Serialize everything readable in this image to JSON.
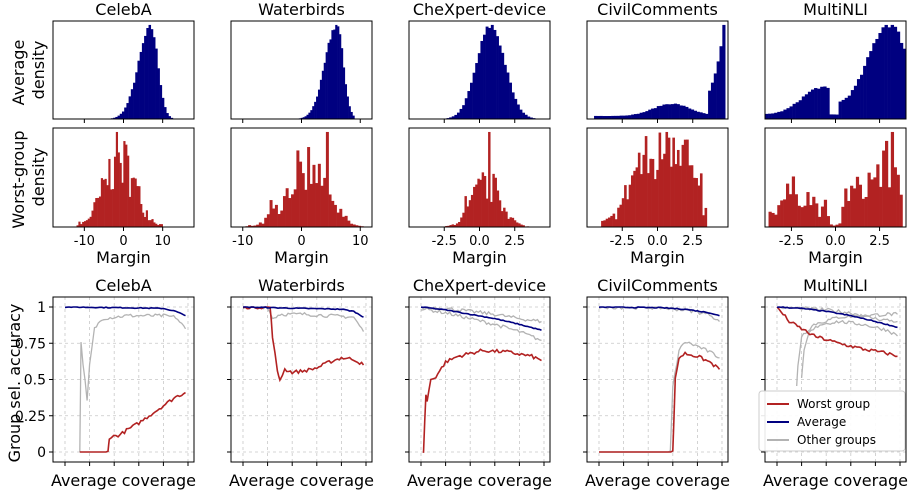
{
  "colors": {
    "average_hist": "#000080",
    "worst_hist": "#b22222",
    "worst_line": "#b22222",
    "average_line": "#000080",
    "other_line": "#b3b3b3"
  },
  "labels": {
    "hist_row1_ylabel": [
      "Average",
      "density"
    ],
    "hist_row2_ylabel": [
      "Worst-group",
      "density"
    ],
    "hist_xlabel": "Margin",
    "sel_ylabel": "Group sel. accuracy",
    "sel_xlabel": "Average coverage"
  },
  "legend": {
    "placement": "lower-right of MultiNLI panel",
    "worst": "Worst group",
    "average": "Average",
    "other": "Other groups"
  },
  "chart_data": [
    {
      "type": "bar",
      "title": "CelebA",
      "xlabel": "Margin",
      "xticks": [
        -10,
        0,
        10
      ],
      "xlim": [
        -18,
        18
      ],
      "average_density": {
        "type": "histogram",
        "peak": 7,
        "shape": "left-skewed unimodal",
        "range": [
          -10,
          16
        ]
      },
      "worst_group_density": {
        "type": "histogram",
        "peak": -1,
        "shape": "noisy, wide",
        "range": [
          -12,
          10
        ]
      }
    },
    {
      "type": "bar",
      "title": "Waterbirds",
      "xlabel": "Margin",
      "xticks": [
        -10,
        0,
        10
      ],
      "xlim": [
        -12,
        12
      ],
      "average_density": {
        "type": "histogram",
        "peak": 6,
        "shape": "left-skewed unimodal",
        "range": [
          -6,
          9
        ]
      },
      "worst_group_density": {
        "type": "histogram",
        "peak": 0,
        "shape": "wide, slight right mode",
        "range": [
          -10,
          11
        ]
      }
    },
    {
      "type": "bar",
      "title": "CheXpert-device",
      "xlabel": "Margin",
      "xticks": [
        "-2.5",
        "0.0",
        "2.5"
      ],
      "xlim": [
        -5,
        5
      ],
      "average_density": {
        "type": "histogram",
        "peak": 0.8,
        "shape": "symmetric unimodal",
        "range": [
          -4,
          4.5
        ]
      },
      "worst_group_density": {
        "type": "histogram",
        "peak": 0.5,
        "shape": "symmetric unimodal",
        "range": [
          -3.5,
          3.5
        ]
      }
    },
    {
      "type": "bar",
      "title": "CivilComments",
      "xlabel": "Margin",
      "xticks": [
        "-2.5",
        "0.0",
        "2.5"
      ],
      "xlim": [
        -5,
        5
      ],
      "average_density": {
        "type": "histogram",
        "peak": 4.6,
        "shape": "right-heavy with small hump near 1",
        "range": [
          -4.5,
          4.8
        ]
      },
      "worst_group_density": {
        "type": "histogram",
        "peak": 1.3,
        "shape": "bimodal",
        "range": [
          -4,
          3.5
        ]
      }
    },
    {
      "type": "bar",
      "title": "MultiNLI",
      "xlabel": "Margin",
      "xticks": [
        "-2.5",
        "0.0",
        "2.5"
      ],
      "xlim": [
        -4,
        4
      ],
      "average_density": {
        "type": "histogram",
        "peak": 3,
        "shape": "bimodal with gap near 0",
        "range": [
          -4,
          4
        ]
      },
      "worst_group_density": {
        "type": "histogram",
        "peak": 3,
        "shape": "bimodal with gap near 0",
        "range": [
          -3.8,
          3.8
        ]
      }
    },
    {
      "type": "line",
      "title": "CelebA",
      "xlabel": "Average coverage",
      "ylabel": "Group sel. accuracy",
      "ylim": [
        0,
        1
      ],
      "yticks": [
        "0",
        "0.25",
        "0.5",
        "0.75",
        "1"
      ],
      "series": [
        {
          "name": "Worst group",
          "x": [
            0.12,
            0.35,
            0.36,
            0.45,
            0.5,
            0.6,
            0.7,
            0.8,
            0.9,
            0.98
          ],
          "y": [
            0,
            0,
            0.1,
            0.12,
            0.15,
            0.2,
            0.26,
            0.32,
            0.38,
            0.41
          ]
        },
        {
          "name": "Average",
          "x": [
            0,
            0.5,
            0.8,
            0.9,
            0.98
          ],
          "y": [
            1,
            0.995,
            0.99,
            0.97,
            0.94
          ]
        },
        {
          "name": "Other groups",
          "x": [
            0.12,
            0.13,
            0.18,
            0.2,
            0.24,
            0.3,
            0.5,
            0.8,
            0.9,
            0.98
          ],
          "y": [
            0,
            0.75,
            0.35,
            0.6,
            0.85,
            0.92,
            0.94,
            0.94,
            0.93,
            0.85
          ]
        }
      ]
    },
    {
      "type": "line",
      "title": "Waterbirds",
      "xlabel": "Average coverage",
      "ylim": [
        0,
        1
      ],
      "series": [
        {
          "name": "Worst group",
          "x": [
            0,
            0.22,
            0.24,
            0.28,
            0.3,
            0.34,
            0.4,
            0.5,
            0.6,
            0.7,
            0.8,
            0.9,
            0.98
          ],
          "y": [
            1,
            1,
            0.8,
            0.55,
            0.5,
            0.57,
            0.55,
            0.56,
            0.58,
            0.62,
            0.65,
            0.64,
            0.6
          ]
        },
        {
          "name": "Average",
          "x": [
            0,
            0.5,
            0.8,
            0.9,
            0.98
          ],
          "y": [
            1,
            0.99,
            0.985,
            0.97,
            0.93
          ]
        },
        {
          "name": "Other groups",
          "x": [
            0,
            0.2,
            0.24,
            0.3,
            0.5,
            0.7,
            0.9,
            0.98
          ],
          "y": [
            1,
            1,
            0.92,
            0.95,
            0.95,
            0.94,
            0.93,
            0.83
          ]
        }
      ]
    },
    {
      "type": "line",
      "title": "CheXpert-device",
      "xlabel": "Average coverage",
      "ylim": [
        0,
        1
      ],
      "series": [
        {
          "name": "Worst group",
          "x": [
            0.02,
            0.04,
            0.05,
            0.08,
            0.12,
            0.2,
            0.3,
            0.5,
            0.7,
            0.9,
            0.98
          ],
          "y": [
            0,
            0.4,
            0.35,
            0.5,
            0.52,
            0.62,
            0.66,
            0.7,
            0.69,
            0.66,
            0.63
          ]
        },
        {
          "name": "Average",
          "x": [
            0,
            0.2,
            0.4,
            0.6,
            0.8,
            0.98
          ],
          "y": [
            1,
            0.98,
            0.95,
            0.92,
            0.88,
            0.84
          ]
        },
        {
          "name": "Other groups",
          "x": [
            0,
            0.2,
            0.4,
            0.6,
            0.8,
            0.98
          ],
          "y": [
            0.99,
            0.96,
            0.92,
            0.88,
            0.83,
            0.77
          ]
        },
        {
          "name": "Other groups",
          "x": [
            0,
            0.2,
            0.4,
            0.6,
            0.8,
            0.98
          ],
          "y": [
            1,
            0.99,
            0.97,
            0.95,
            0.92,
            0.9
          ]
        }
      ]
    },
    {
      "type": "line",
      "title": "CivilComments",
      "xlabel": "Average coverage",
      "ylim": [
        0,
        1
      ],
      "series": [
        {
          "name": "Worst group",
          "x": [
            0,
            0.6,
            0.62,
            0.65,
            0.7,
            0.8,
            0.9,
            0.98
          ],
          "y": [
            0,
            0,
            0.5,
            0.65,
            0.68,
            0.66,
            0.62,
            0.57
          ]
        },
        {
          "name": "Average",
          "x": [
            0,
            0.5,
            0.7,
            0.9,
            0.98
          ],
          "y": [
            1,
            0.995,
            0.985,
            0.96,
            0.94
          ]
        },
        {
          "name": "Other groups",
          "x": [
            0,
            0.58,
            0.6,
            0.65,
            0.7,
            0.8,
            0.9,
            0.98
          ],
          "y": [
            0,
            0,
            0.45,
            0.7,
            0.76,
            0.73,
            0.69,
            0.65
          ]
        },
        {
          "name": "Other groups",
          "x": [
            0,
            0.5,
            0.7,
            0.9,
            0.98
          ],
          "y": [
            1,
            0.995,
            0.98,
            0.95,
            0.9
          ]
        }
      ]
    },
    {
      "type": "line",
      "title": "MultiNLI",
      "xlabel": "Average coverage",
      "ylim": [
        0,
        1
      ],
      "series": [
        {
          "name": "Worst group",
          "x": [
            0,
            0.05,
            0.1,
            0.2,
            0.3,
            0.5,
            0.7,
            0.9,
            0.98
          ],
          "y": [
            1,
            0.95,
            0.9,
            0.85,
            0.8,
            0.75,
            0.71,
            0.68,
            0.66
          ]
        },
        {
          "name": "Average",
          "x": [
            0,
            0.2,
            0.4,
            0.6,
            0.8,
            0.98
          ],
          "y": [
            1,
            0.99,
            0.97,
            0.94,
            0.9,
            0.86
          ]
        },
        {
          "name": "Other groups",
          "x": [
            0.16,
            0.17,
            0.2,
            0.3,
            0.5,
            0.7,
            0.9,
            0.98
          ],
          "y": [
            0.45,
            0.6,
            0.8,
            0.88,
            0.93,
            0.94,
            0.95,
            0.95
          ]
        },
        {
          "name": "Other groups",
          "x": [
            0.2,
            0.22,
            0.26,
            0.35,
            0.5,
            0.7,
            0.9,
            0.98
          ],
          "y": [
            0.5,
            0.7,
            0.82,
            0.88,
            0.9,
            0.88,
            0.84,
            0.8
          ]
        },
        {
          "name": "Other groups",
          "x": [
            0,
            0.2,
            0.4,
            0.6,
            0.8,
            0.98
          ],
          "y": [
            1,
            0.99,
            0.98,
            0.96,
            0.92,
            0.9
          ]
        }
      ]
    }
  ]
}
